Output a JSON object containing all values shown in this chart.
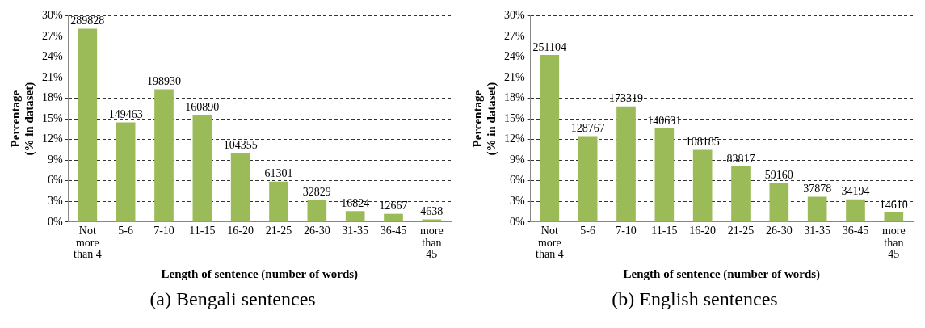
{
  "chart_data": [
    {
      "type": "bar",
      "xlabel": "Length of sentence (number of words)",
      "ylabel": "Percentage\n(% in dataset)",
      "categories": [
        "Not more than 4",
        "5-6",
        "7-10",
        "11-15",
        "16-20",
        "21-25",
        "26-30",
        "31-35",
        "36-45",
        "more than 45"
      ],
      "values": [
        28.1,
        14.5,
        19.3,
        15.6,
        10.1,
        5.9,
        3.2,
        1.6,
        1.2,
        0.4
      ],
      "color": "#9bbb59",
      "ylim": [
        0,
        30
      ],
      "yticks": [
        {
          "value": 0,
          "label": "0%"
        },
        {
          "value": 3,
          "label": "3%"
        },
        {
          "value": 6,
          "label": "6%"
        },
        {
          "value": 9,
          "label": "9%"
        },
        {
          "value": 12,
          "label": "12%"
        },
        {
          "value": 15,
          "label": "15%"
        },
        {
          "value": 18,
          "label": "18%"
        },
        {
          "value": 21,
          "label": "21%"
        },
        {
          "value": 24,
          "label": "24%"
        },
        {
          "value": 27,
          "label": "27%"
        },
        {
          "value": 30,
          "label": "30%"
        }
      ],
      "grid": "y",
      "annotations": [
        {
          "text": "289828",
          "x": "Not more than 4",
          "y": 28.1
        },
        {
          "text": "149463",
          "x": "5-6",
          "y": 14.5
        },
        {
          "text": "198930",
          "x": "7-10",
          "y": 19.3
        },
        {
          "text": "160890",
          "x": "11-15",
          "y": 15.6
        },
        {
          "text": "104355",
          "x": "16-20",
          "y": 10.1
        },
        {
          "text": "61301",
          "x": "21-25",
          "y": 5.9
        },
        {
          "text": "32829",
          "x": "26-30",
          "y": 3.2
        },
        {
          "text": "16824",
          "x": "31-35",
          "y": 1.6
        },
        {
          "text": "12667",
          "x": "36-45",
          "y": 1.2
        },
        {
          "text": "4638",
          "x": "more than 45",
          "y": 0.4
        },
        "(a) Bengali sentences"
      ]
    },
    {
      "type": "bar",
      "xlabel": "Length of sentence (number of words)",
      "ylabel": "Percentage\n(% in dataset)",
      "categories": [
        "Not more than 4",
        "5-6",
        "7-10",
        "11-15",
        "16-20",
        "21-25",
        "26-30",
        "31-35",
        "36-45",
        "more than 45"
      ],
      "values": [
        24.3,
        12.5,
        16.8,
        13.6,
        10.5,
        8.1,
        5.7,
        3.7,
        3.3,
        1.4
      ],
      "color": "#9bbb59",
      "ylim": [
        0,
        30
      ],
      "yticks": [
        {
          "value": 0,
          "label": "0%"
        },
        {
          "value": 3,
          "label": "3%"
        },
        {
          "value": 6,
          "label": "6%"
        },
        {
          "value": 9,
          "label": "9%"
        },
        {
          "value": 12,
          "label": "12%"
        },
        {
          "value": 15,
          "label": "15%"
        },
        {
          "value": 18,
          "label": "18%"
        },
        {
          "value": 21,
          "label": "21%"
        },
        {
          "value": 24,
          "label": "24%"
        },
        {
          "value": 27,
          "label": "27%"
        },
        {
          "value": 30,
          "label": "30%"
        }
      ],
      "grid": "y",
      "annotations": [
        {
          "text": "251104",
          "x": "Not more than 4",
          "y": 24.3
        },
        {
          "text": "128767",
          "x": "5-6",
          "y": 12.5
        },
        {
          "text": "173319",
          "x": "7-10",
          "y": 16.8
        },
        {
          "text": "140691",
          "x": "11-15",
          "y": 13.6
        },
        {
          "text": "108185",
          "x": "16-20",
          "y": 10.5
        },
        {
          "text": "83817",
          "x": "21-25",
          "y": 8.1
        },
        {
          "text": "59160",
          "x": "26-30",
          "y": 5.7
        },
        {
          "text": "37878",
          "x": "31-35",
          "y": 3.7
        },
        {
          "text": "34194",
          "x": "36-45",
          "y": 3.3
        },
        {
          "text": "14610",
          "x": "more than 45",
          "y": 1.4
        },
        "(b) English sentences"
      ]
    }
  ]
}
